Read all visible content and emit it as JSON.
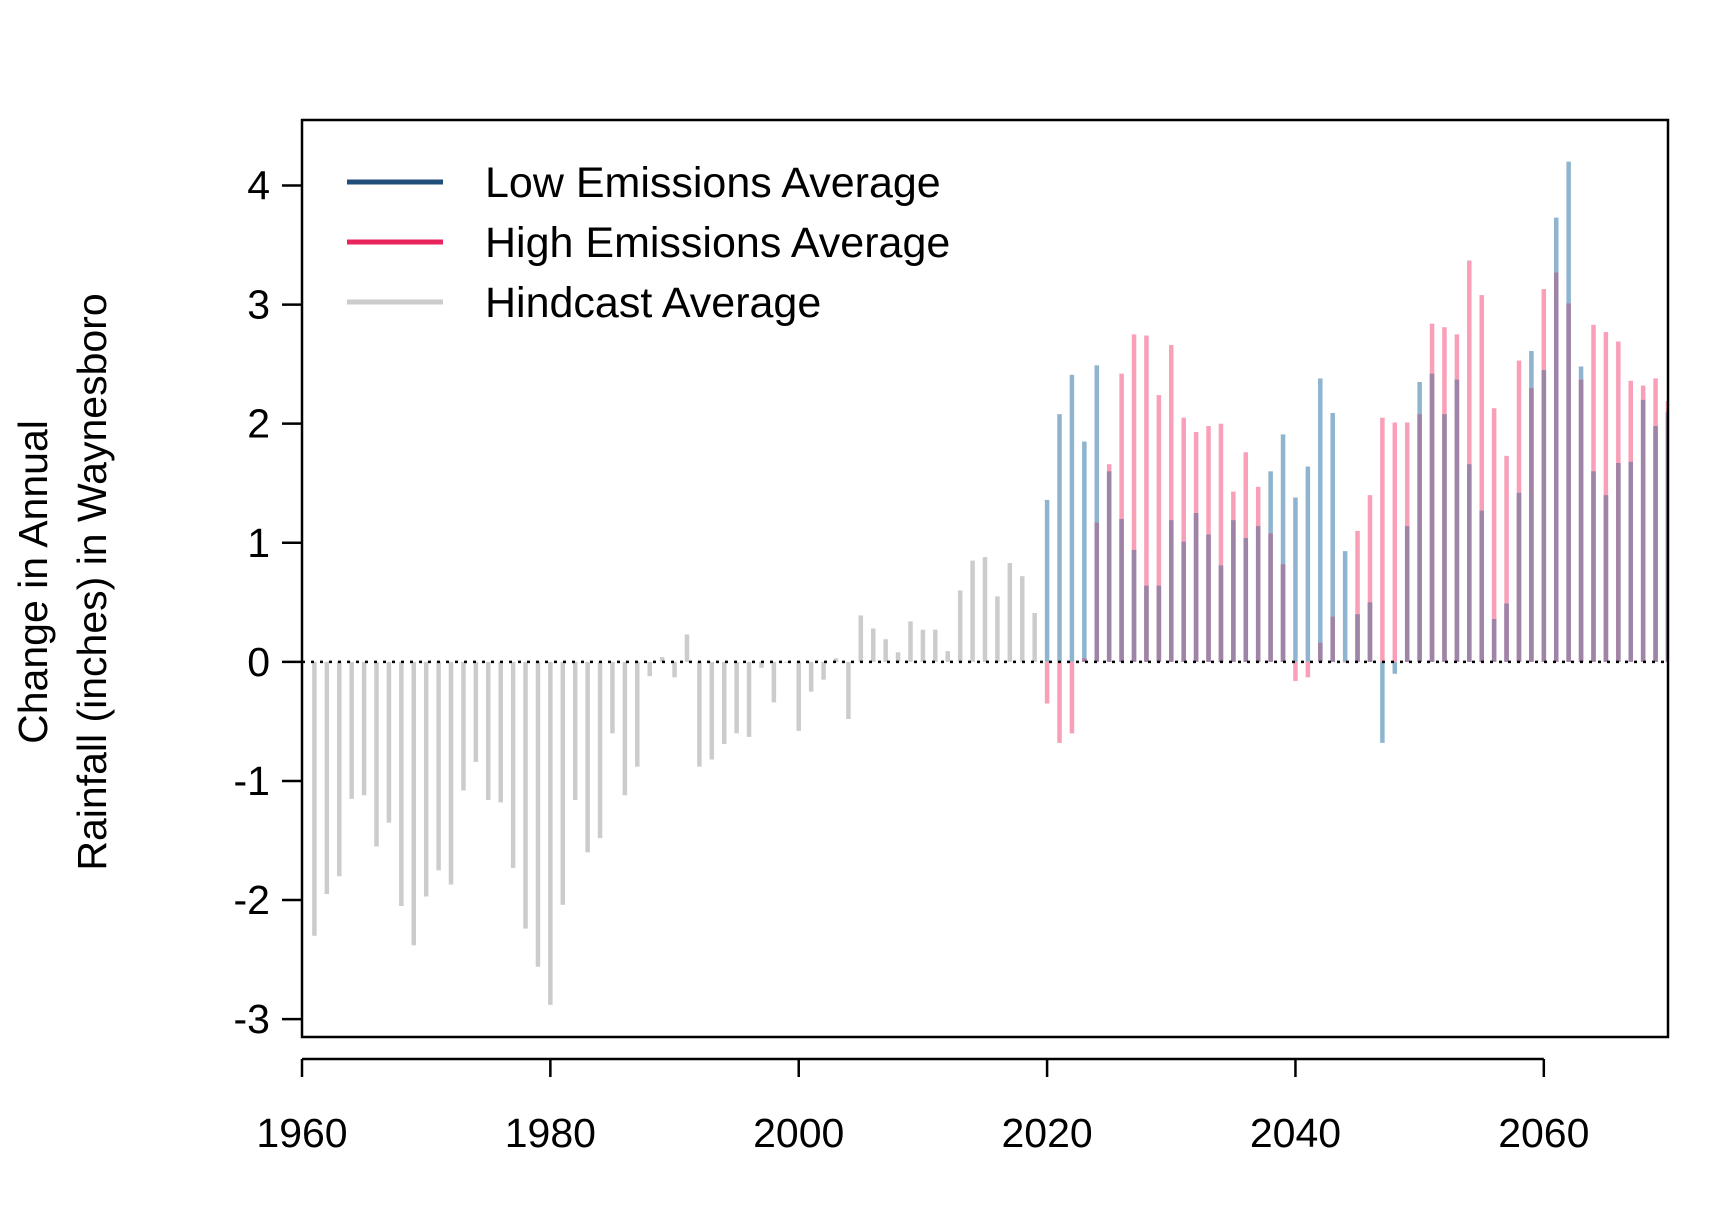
{
  "chart_data": {
    "type": "bar",
    "ylabel_line1": "Change in Annual",
    "ylabel_line2": "Rainfall (inches) in Waynesboro",
    "xlim": [
      1960,
      2070
    ],
    "ylim": [
      -3.15,
      4.55
    ],
    "x_ticks": [
      1960,
      1980,
      2000,
      2020,
      2040,
      2060
    ],
    "y_ticks": [
      -3,
      -2,
      -1,
      0,
      1,
      2,
      3,
      4
    ],
    "grid": false,
    "baseline": 0,
    "legend_position": "top-left",
    "legend": [
      {
        "key": "low",
        "label": "Low Emissions Average",
        "color": "#1f4e79"
      },
      {
        "key": "high",
        "label": "High Emissions Average",
        "color": "#e8245c"
      },
      {
        "key": "hind",
        "label": "Hindcast Average",
        "color": "#cccccc"
      }
    ],
    "series": [
      {
        "name": "Hindcast Average",
        "color": "#cccccc",
        "x": [
          1961,
          1962,
          1963,
          1964,
          1965,
          1966,
          1967,
          1968,
          1969,
          1970,
          1971,
          1972,
          1973,
          1974,
          1975,
          1976,
          1977,
          1978,
          1979,
          1980,
          1981,
          1982,
          1983,
          1984,
          1985,
          1986,
          1987,
          1988,
          1989,
          1990,
          1991,
          1992,
          1993,
          1994,
          1995,
          1996,
          1997,
          1998,
          1999,
          2000,
          2001,
          2002,
          2003,
          2004,
          2005,
          2006,
          2007,
          2008,
          2009,
          2010,
          2011,
          2012,
          2013,
          2014,
          2015,
          2016,
          2017,
          2018,
          2019
        ],
        "values": [
          -2.3,
          -1.95,
          -1.8,
          -1.15,
          -1.12,
          -1.55,
          -1.35,
          -2.05,
          -2.38,
          -1.97,
          -1.75,
          -1.87,
          -1.08,
          -0.84,
          -1.16,
          -1.18,
          -1.73,
          -2.24,
          -2.56,
          -2.88,
          -2.04,
          -1.16,
          -1.6,
          -1.48,
          -0.6,
          -1.12,
          -0.88,
          -0.12,
          0.04,
          -0.13,
          0.23,
          -0.88,
          -0.82,
          -0.69,
          -0.6,
          -0.63,
          -0.05,
          -0.34,
          0.0,
          -0.58,
          -0.25,
          -0.15,
          0.03,
          -0.48,
          0.39,
          0.28,
          0.19,
          0.08,
          0.34,
          0.27,
          0.27,
          0.09,
          0.6,
          0.85,
          0.88,
          0.55,
          0.83,
          0.72,
          0.41
        ]
      },
      {
        "name": "Low Emissions Average",
        "color": "#8fb4cf",
        "x": [
          2020,
          2021,
          2022,
          2023,
          2024,
          2025,
          2026,
          2027,
          2028,
          2029,
          2030,
          2031,
          2032,
          2033,
          2034,
          2035,
          2036,
          2037,
          2038,
          2039,
          2040,
          2041,
          2042,
          2043,
          2044,
          2045,
          2046,
          2047,
          2048,
          2049,
          2050,
          2051,
          2052,
          2053,
          2054,
          2055,
          2056,
          2057,
          2058,
          2059,
          2060,
          2061,
          2062,
          2063,
          2064,
          2065,
          2066,
          2067,
          2068,
          2069,
          2070
        ],
        "values": [
          1.36,
          2.08,
          2.41,
          1.85,
          2.49,
          1.6,
          1.2,
          0.94,
          0.64,
          0.64,
          1.19,
          1.01,
          1.25,
          1.07,
          0.81,
          1.19,
          1.04,
          1.14,
          1.6,
          1.91,
          1.38,
          1.64,
          2.38,
          2.09,
          0.93,
          0.4,
          0.5,
          -0.68,
          -0.1,
          1.14,
          2.35,
          2.42,
          2.08,
          2.37,
          1.66,
          1.27,
          0.36,
          0.49,
          1.42,
          2.61,
          2.45,
          3.73,
          4.2,
          2.48,
          1.6,
          1.4,
          1.67,
          1.68,
          2.2,
          1.98,
          2.1
        ]
      },
      {
        "name": "High Emissions Average",
        "color": "#fa9fb8",
        "x": [
          2020,
          2021,
          2022,
          2023,
          2024,
          2025,
          2026,
          2027,
          2028,
          2029,
          2030,
          2031,
          2032,
          2033,
          2034,
          2035,
          2036,
          2037,
          2038,
          2039,
          2040,
          2041,
          2042,
          2043,
          2044,
          2045,
          2046,
          2047,
          2048,
          2049,
          2050,
          2051,
          2052,
          2053,
          2054,
          2055,
          2056,
          2057,
          2058,
          2059,
          2060,
          2061,
          2062,
          2063,
          2064,
          2065,
          2066,
          2067,
          2068,
          2069,
          2070
        ],
        "values": [
          -0.35,
          -0.68,
          -0.6,
          0.03,
          1.17,
          1.66,
          2.42,
          2.75,
          2.74,
          2.24,
          2.66,
          2.05,
          1.93,
          1.98,
          2.0,
          1.43,
          1.76,
          1.47,
          1.08,
          0.82,
          -0.16,
          -0.13,
          0.16,
          0.38,
          0.0,
          1.1,
          1.4,
          2.05,
          2.01,
          2.01,
          2.08,
          2.84,
          2.81,
          2.75,
          3.37,
          3.08,
          2.13,
          1.73,
          2.53,
          2.3,
          3.13,
          3.27,
          3.01,
          2.37,
          2.83,
          2.77,
          2.69,
          2.36,
          2.32,
          2.38,
          2.19
        ]
      }
    ],
    "overlap_color": "#9e85a8"
  }
}
